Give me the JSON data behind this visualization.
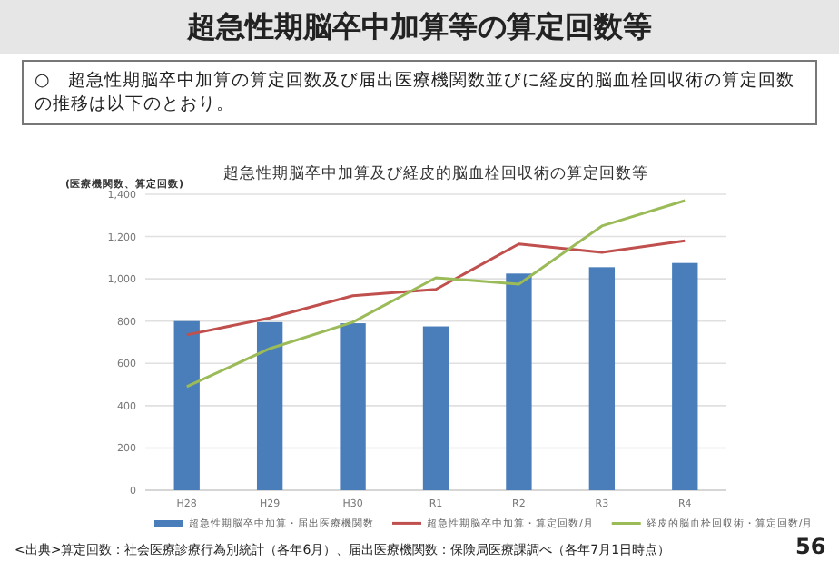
{
  "chart_data": {
    "type": "bar",
    "title": "超急性期脳卒中加算等の算定回数等",
    "subtitle": "超急性期脳卒中加算及び経皮的脳血栓回収術の算定回数等",
    "ylabel": "(医療機関数、算定回数)",
    "annotations": [
      "○　超急性期脳卒中加算の算定回数及び届出医療機関数並びに経皮的脳血栓回収術の算定回数の推移は以下のとおり。",
      "<出典>算定回数：社会医療診療行為別統計（各年6月）、届出医療機関数：保険局医療課調べ（各年7月1日時点）",
      "56"
    ],
    "categories": [
      "H28",
      "H29",
      "H30",
      "R1",
      "R2",
      "R3",
      "R4"
    ],
    "series": [
      {
        "name": "超急性期脳卒中加算・届出医療機関数",
        "color": "#4a7ebb",
        "values": [
          800,
          795,
          790,
          775,
          1025,
          1055,
          1075
        ]
      },
      {
        "name": "超急性期脳卒中加算・算定回数/月",
        "type": "line",
        "color": "#c0504d",
        "values": [
          735,
          815,
          920,
          950,
          1165,
          1125,
          1180
        ]
      },
      {
        "name": "経皮的脳血栓回収術・算定回数/月",
        "type": "line",
        "color": "#9bbb59",
        "values": [
          490,
          670,
          795,
          1005,
          975,
          1250,
          1370
        ]
      }
    ],
    "ylim": [
      0,
      1400
    ],
    "yticks": [
      0,
      200,
      400,
      600,
      800,
      {
        "value": 1000,
        "label": "1,000"
      },
      {
        "value": 1200,
        "label": "1,200"
      },
      {
        "value": 1400,
        "label": "1,400"
      }
    ],
    "grid": "y",
    "legend": "bottom",
    "marker": "none",
    "line_style": "solid"
  }
}
